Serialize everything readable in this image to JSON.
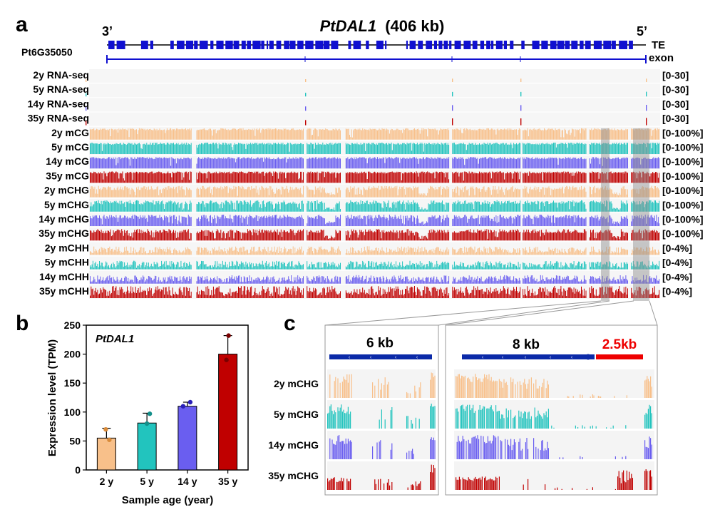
{
  "panel_labels": {
    "a": "a",
    "b": "b",
    "c": "c"
  },
  "colors": {
    "y2": "#f8c08a",
    "y5": "#22c4be",
    "y14": "#6a5ef0",
    "y35": "#c00000",
    "gene": "#1010d0",
    "highlight": "#999999",
    "red": "#ee0000"
  },
  "panel_a": {
    "title_gene": "PtDAL1",
    "title_size": "(406 kb)",
    "end_left": "3’",
    "end_right": "5’",
    "gene_label": "Pt6G35050",
    "track_te": "TE",
    "track_exon": "exon",
    "tracks": [
      {
        "label": "2y RNA-seq",
        "range": "[0-30]",
        "kind": "rna",
        "color": "y2"
      },
      {
        "label": "5y RNA-seq",
        "range": "[0-30]",
        "kind": "rna",
        "color": "y5"
      },
      {
        "label": "14y RNA-seq",
        "range": "[0-30]",
        "kind": "rna",
        "color": "y14"
      },
      {
        "label": "35y RNA-seq",
        "range": "[0-30]",
        "kind": "rna",
        "color": "y35"
      },
      {
        "label": "2y mCG",
        "range": "[0-100%]",
        "kind": "mcg",
        "color": "y2"
      },
      {
        "label": "5y mCG",
        "range": "[0-100%]",
        "kind": "mcg",
        "color": "y5"
      },
      {
        "label": "14y mCG",
        "range": "[0-100%]",
        "kind": "mcg",
        "color": "y14"
      },
      {
        "label": "35y mCG",
        "range": "[0-100%]",
        "kind": "mcg",
        "color": "y35"
      },
      {
        "label": "2y mCHG",
        "range": "[0-100%]",
        "kind": "mchg",
        "color": "y2"
      },
      {
        "label": "5y mCHG",
        "range": "[0-100%]",
        "kind": "mchg",
        "color": "y5"
      },
      {
        "label": "14y mCHG",
        "range": "[0-100%]",
        "kind": "mchg",
        "color": "y14"
      },
      {
        "label": "35y mCHG",
        "range": "[0-100%]",
        "kind": "mchg",
        "color": "y35"
      },
      {
        "label": "2y mCHH",
        "range": "[0-4%]",
        "kind": "mchh",
        "color": "y2"
      },
      {
        "label": "5y mCHH",
        "range": "[0-4%]",
        "kind": "mchh",
        "color": "y5"
      },
      {
        "label": "14y mCHH",
        "range": "[0-4%]",
        "kind": "mchh",
        "color": "y14"
      },
      {
        "label": "35y mCHH",
        "range": "[0-4%]",
        "kind": "mchh",
        "color": "y35"
      }
    ]
  },
  "panel_b": {
    "gene": "PtDAL1",
    "xlabel": "Sample age (year)",
    "ylabel": "Expression level (TPM)"
  },
  "panel_c": {
    "left_size": "6 kb",
    "right_size": "8 kb",
    "right_red_size": "2.5kb",
    "tracks": [
      {
        "label": "2y mCHG",
        "color": "y2"
      },
      {
        "label": "5y mCHG",
        "color": "y5"
      },
      {
        "label": "14y mCHG",
        "color": "y14"
      },
      {
        "label": "35y mCHG",
        "color": "y35"
      }
    ]
  },
  "chart_data": {
    "type": "bar",
    "title": "PtDAL1",
    "categories": [
      "2 y",
      "5 y",
      "14 y",
      "35 y"
    ],
    "values": [
      55,
      81,
      110,
      200
    ],
    "error_upper": [
      72,
      98,
      117,
      232
    ],
    "points": [
      [
        70,
        52,
        38
      ],
      [
        97,
        80,
        62
      ],
      [
        117,
        110,
        103
      ],
      [
        232,
        190,
        170
      ]
    ],
    "xlabel": "Sample age (year)",
    "ylabel": "Expression level (TPM)",
    "ylim": [
      0,
      250
    ],
    "yticks": [
      0,
      50,
      100,
      150,
      200,
      250
    ]
  }
}
